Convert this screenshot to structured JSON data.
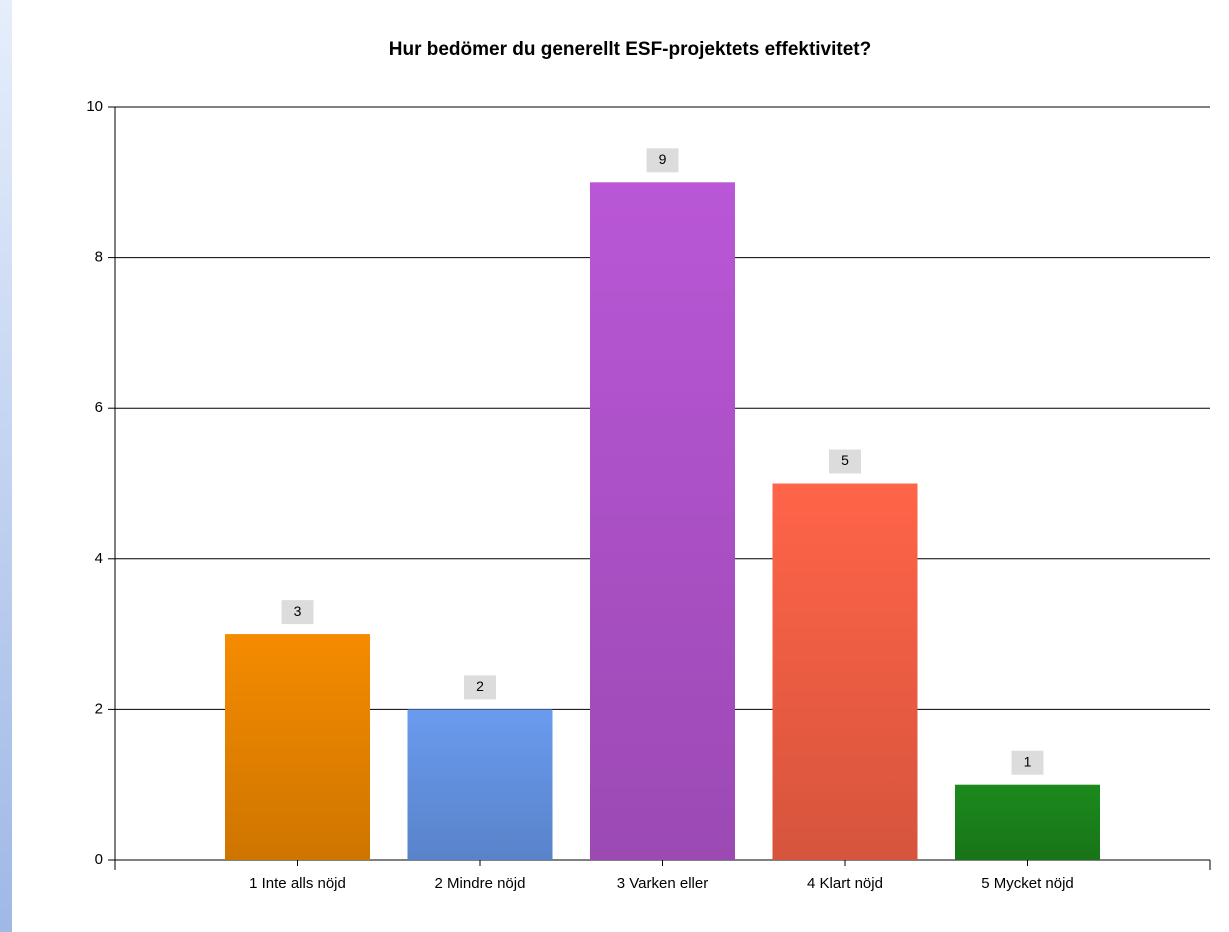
{
  "chart_data": {
    "type": "bar",
    "title": "Hur bedömer du generellt ESF-projektets effektivitet?",
    "categories": [
      "1 Inte alls nöjd",
      "2 Mindre nöjd",
      "3 Varken eller",
      "4 Klart nöjd",
      "5 Mycket nöjd"
    ],
    "values": [
      3,
      2,
      9,
      5,
      1
    ],
    "colors": [
      "#f58b00",
      "#6a9bef",
      "#b957d6",
      "#ff6448",
      "#1c8a1c"
    ],
    "ylim": [
      0,
      10
    ],
    "yticks": [
      0,
      2,
      4,
      6,
      8,
      10
    ],
    "grid": true
  }
}
